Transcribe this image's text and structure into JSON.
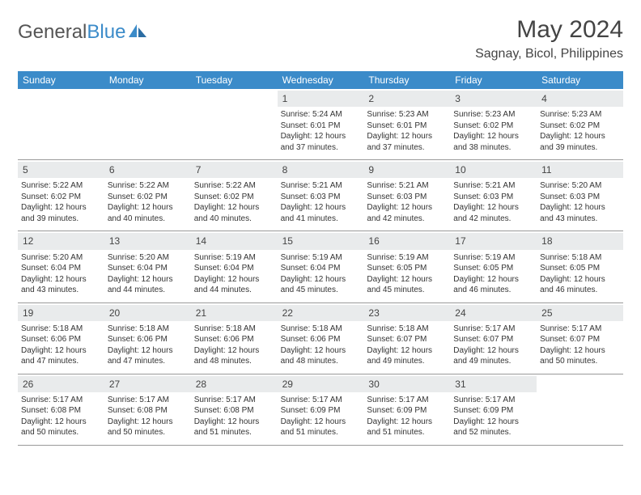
{
  "logo": {
    "text1": "General",
    "text2": "Blue"
  },
  "title": "May 2024",
  "location": "Sagnay, Bicol, Philippines",
  "colors": {
    "header_bg": "#3b8bc9",
    "header_text": "#ffffff",
    "daynum_bg": "#e9ebec",
    "text": "#333333",
    "border": "#999999",
    "page_bg": "#ffffff"
  },
  "fonts": {
    "title_size": 30,
    "location_size": 16,
    "header_size": 12,
    "cell_size": 10
  },
  "dayNames": [
    "Sunday",
    "Monday",
    "Tuesday",
    "Wednesday",
    "Thursday",
    "Friday",
    "Saturday"
  ],
  "weeks": [
    [
      {
        "day": "",
        "l1": "",
        "l2": "",
        "l3": "",
        "l4": ""
      },
      {
        "day": "",
        "l1": "",
        "l2": "",
        "l3": "",
        "l4": ""
      },
      {
        "day": "",
        "l1": "",
        "l2": "",
        "l3": "",
        "l4": ""
      },
      {
        "day": "1",
        "l1": "Sunrise: 5:24 AM",
        "l2": "Sunset: 6:01 PM",
        "l3": "Daylight: 12 hours",
        "l4": "and 37 minutes."
      },
      {
        "day": "2",
        "l1": "Sunrise: 5:23 AM",
        "l2": "Sunset: 6:01 PM",
        "l3": "Daylight: 12 hours",
        "l4": "and 37 minutes."
      },
      {
        "day": "3",
        "l1": "Sunrise: 5:23 AM",
        "l2": "Sunset: 6:02 PM",
        "l3": "Daylight: 12 hours",
        "l4": "and 38 minutes."
      },
      {
        "day": "4",
        "l1": "Sunrise: 5:23 AM",
        "l2": "Sunset: 6:02 PM",
        "l3": "Daylight: 12 hours",
        "l4": "and 39 minutes."
      }
    ],
    [
      {
        "day": "5",
        "l1": "Sunrise: 5:22 AM",
        "l2": "Sunset: 6:02 PM",
        "l3": "Daylight: 12 hours",
        "l4": "and 39 minutes."
      },
      {
        "day": "6",
        "l1": "Sunrise: 5:22 AM",
        "l2": "Sunset: 6:02 PM",
        "l3": "Daylight: 12 hours",
        "l4": "and 40 minutes."
      },
      {
        "day": "7",
        "l1": "Sunrise: 5:22 AM",
        "l2": "Sunset: 6:02 PM",
        "l3": "Daylight: 12 hours",
        "l4": "and 40 minutes."
      },
      {
        "day": "8",
        "l1": "Sunrise: 5:21 AM",
        "l2": "Sunset: 6:03 PM",
        "l3": "Daylight: 12 hours",
        "l4": "and 41 minutes."
      },
      {
        "day": "9",
        "l1": "Sunrise: 5:21 AM",
        "l2": "Sunset: 6:03 PM",
        "l3": "Daylight: 12 hours",
        "l4": "and 42 minutes."
      },
      {
        "day": "10",
        "l1": "Sunrise: 5:21 AM",
        "l2": "Sunset: 6:03 PM",
        "l3": "Daylight: 12 hours",
        "l4": "and 42 minutes."
      },
      {
        "day": "11",
        "l1": "Sunrise: 5:20 AM",
        "l2": "Sunset: 6:03 PM",
        "l3": "Daylight: 12 hours",
        "l4": "and 43 minutes."
      }
    ],
    [
      {
        "day": "12",
        "l1": "Sunrise: 5:20 AM",
        "l2": "Sunset: 6:04 PM",
        "l3": "Daylight: 12 hours",
        "l4": "and 43 minutes."
      },
      {
        "day": "13",
        "l1": "Sunrise: 5:20 AM",
        "l2": "Sunset: 6:04 PM",
        "l3": "Daylight: 12 hours",
        "l4": "and 44 minutes."
      },
      {
        "day": "14",
        "l1": "Sunrise: 5:19 AM",
        "l2": "Sunset: 6:04 PM",
        "l3": "Daylight: 12 hours",
        "l4": "and 44 minutes."
      },
      {
        "day": "15",
        "l1": "Sunrise: 5:19 AM",
        "l2": "Sunset: 6:04 PM",
        "l3": "Daylight: 12 hours",
        "l4": "and 45 minutes."
      },
      {
        "day": "16",
        "l1": "Sunrise: 5:19 AM",
        "l2": "Sunset: 6:05 PM",
        "l3": "Daylight: 12 hours",
        "l4": "and 45 minutes."
      },
      {
        "day": "17",
        "l1": "Sunrise: 5:19 AM",
        "l2": "Sunset: 6:05 PM",
        "l3": "Daylight: 12 hours",
        "l4": "and 46 minutes."
      },
      {
        "day": "18",
        "l1": "Sunrise: 5:18 AM",
        "l2": "Sunset: 6:05 PM",
        "l3": "Daylight: 12 hours",
        "l4": "and 46 minutes."
      }
    ],
    [
      {
        "day": "19",
        "l1": "Sunrise: 5:18 AM",
        "l2": "Sunset: 6:06 PM",
        "l3": "Daylight: 12 hours",
        "l4": "and 47 minutes."
      },
      {
        "day": "20",
        "l1": "Sunrise: 5:18 AM",
        "l2": "Sunset: 6:06 PM",
        "l3": "Daylight: 12 hours",
        "l4": "and 47 minutes."
      },
      {
        "day": "21",
        "l1": "Sunrise: 5:18 AM",
        "l2": "Sunset: 6:06 PM",
        "l3": "Daylight: 12 hours",
        "l4": "and 48 minutes."
      },
      {
        "day": "22",
        "l1": "Sunrise: 5:18 AM",
        "l2": "Sunset: 6:06 PM",
        "l3": "Daylight: 12 hours",
        "l4": "and 48 minutes."
      },
      {
        "day": "23",
        "l1": "Sunrise: 5:18 AM",
        "l2": "Sunset: 6:07 PM",
        "l3": "Daylight: 12 hours",
        "l4": "and 49 minutes."
      },
      {
        "day": "24",
        "l1": "Sunrise: 5:17 AM",
        "l2": "Sunset: 6:07 PM",
        "l3": "Daylight: 12 hours",
        "l4": "and 49 minutes."
      },
      {
        "day": "25",
        "l1": "Sunrise: 5:17 AM",
        "l2": "Sunset: 6:07 PM",
        "l3": "Daylight: 12 hours",
        "l4": "and 50 minutes."
      }
    ],
    [
      {
        "day": "26",
        "l1": "Sunrise: 5:17 AM",
        "l2": "Sunset: 6:08 PM",
        "l3": "Daylight: 12 hours",
        "l4": "and 50 minutes."
      },
      {
        "day": "27",
        "l1": "Sunrise: 5:17 AM",
        "l2": "Sunset: 6:08 PM",
        "l3": "Daylight: 12 hours",
        "l4": "and 50 minutes."
      },
      {
        "day": "28",
        "l1": "Sunrise: 5:17 AM",
        "l2": "Sunset: 6:08 PM",
        "l3": "Daylight: 12 hours",
        "l4": "and 51 minutes."
      },
      {
        "day": "29",
        "l1": "Sunrise: 5:17 AM",
        "l2": "Sunset: 6:09 PM",
        "l3": "Daylight: 12 hours",
        "l4": "and 51 minutes."
      },
      {
        "day": "30",
        "l1": "Sunrise: 5:17 AM",
        "l2": "Sunset: 6:09 PM",
        "l3": "Daylight: 12 hours",
        "l4": "and 51 minutes."
      },
      {
        "day": "31",
        "l1": "Sunrise: 5:17 AM",
        "l2": "Sunset: 6:09 PM",
        "l3": "Daylight: 12 hours",
        "l4": "and 52 minutes."
      },
      {
        "day": "",
        "l1": "",
        "l2": "",
        "l3": "",
        "l4": ""
      }
    ]
  ]
}
